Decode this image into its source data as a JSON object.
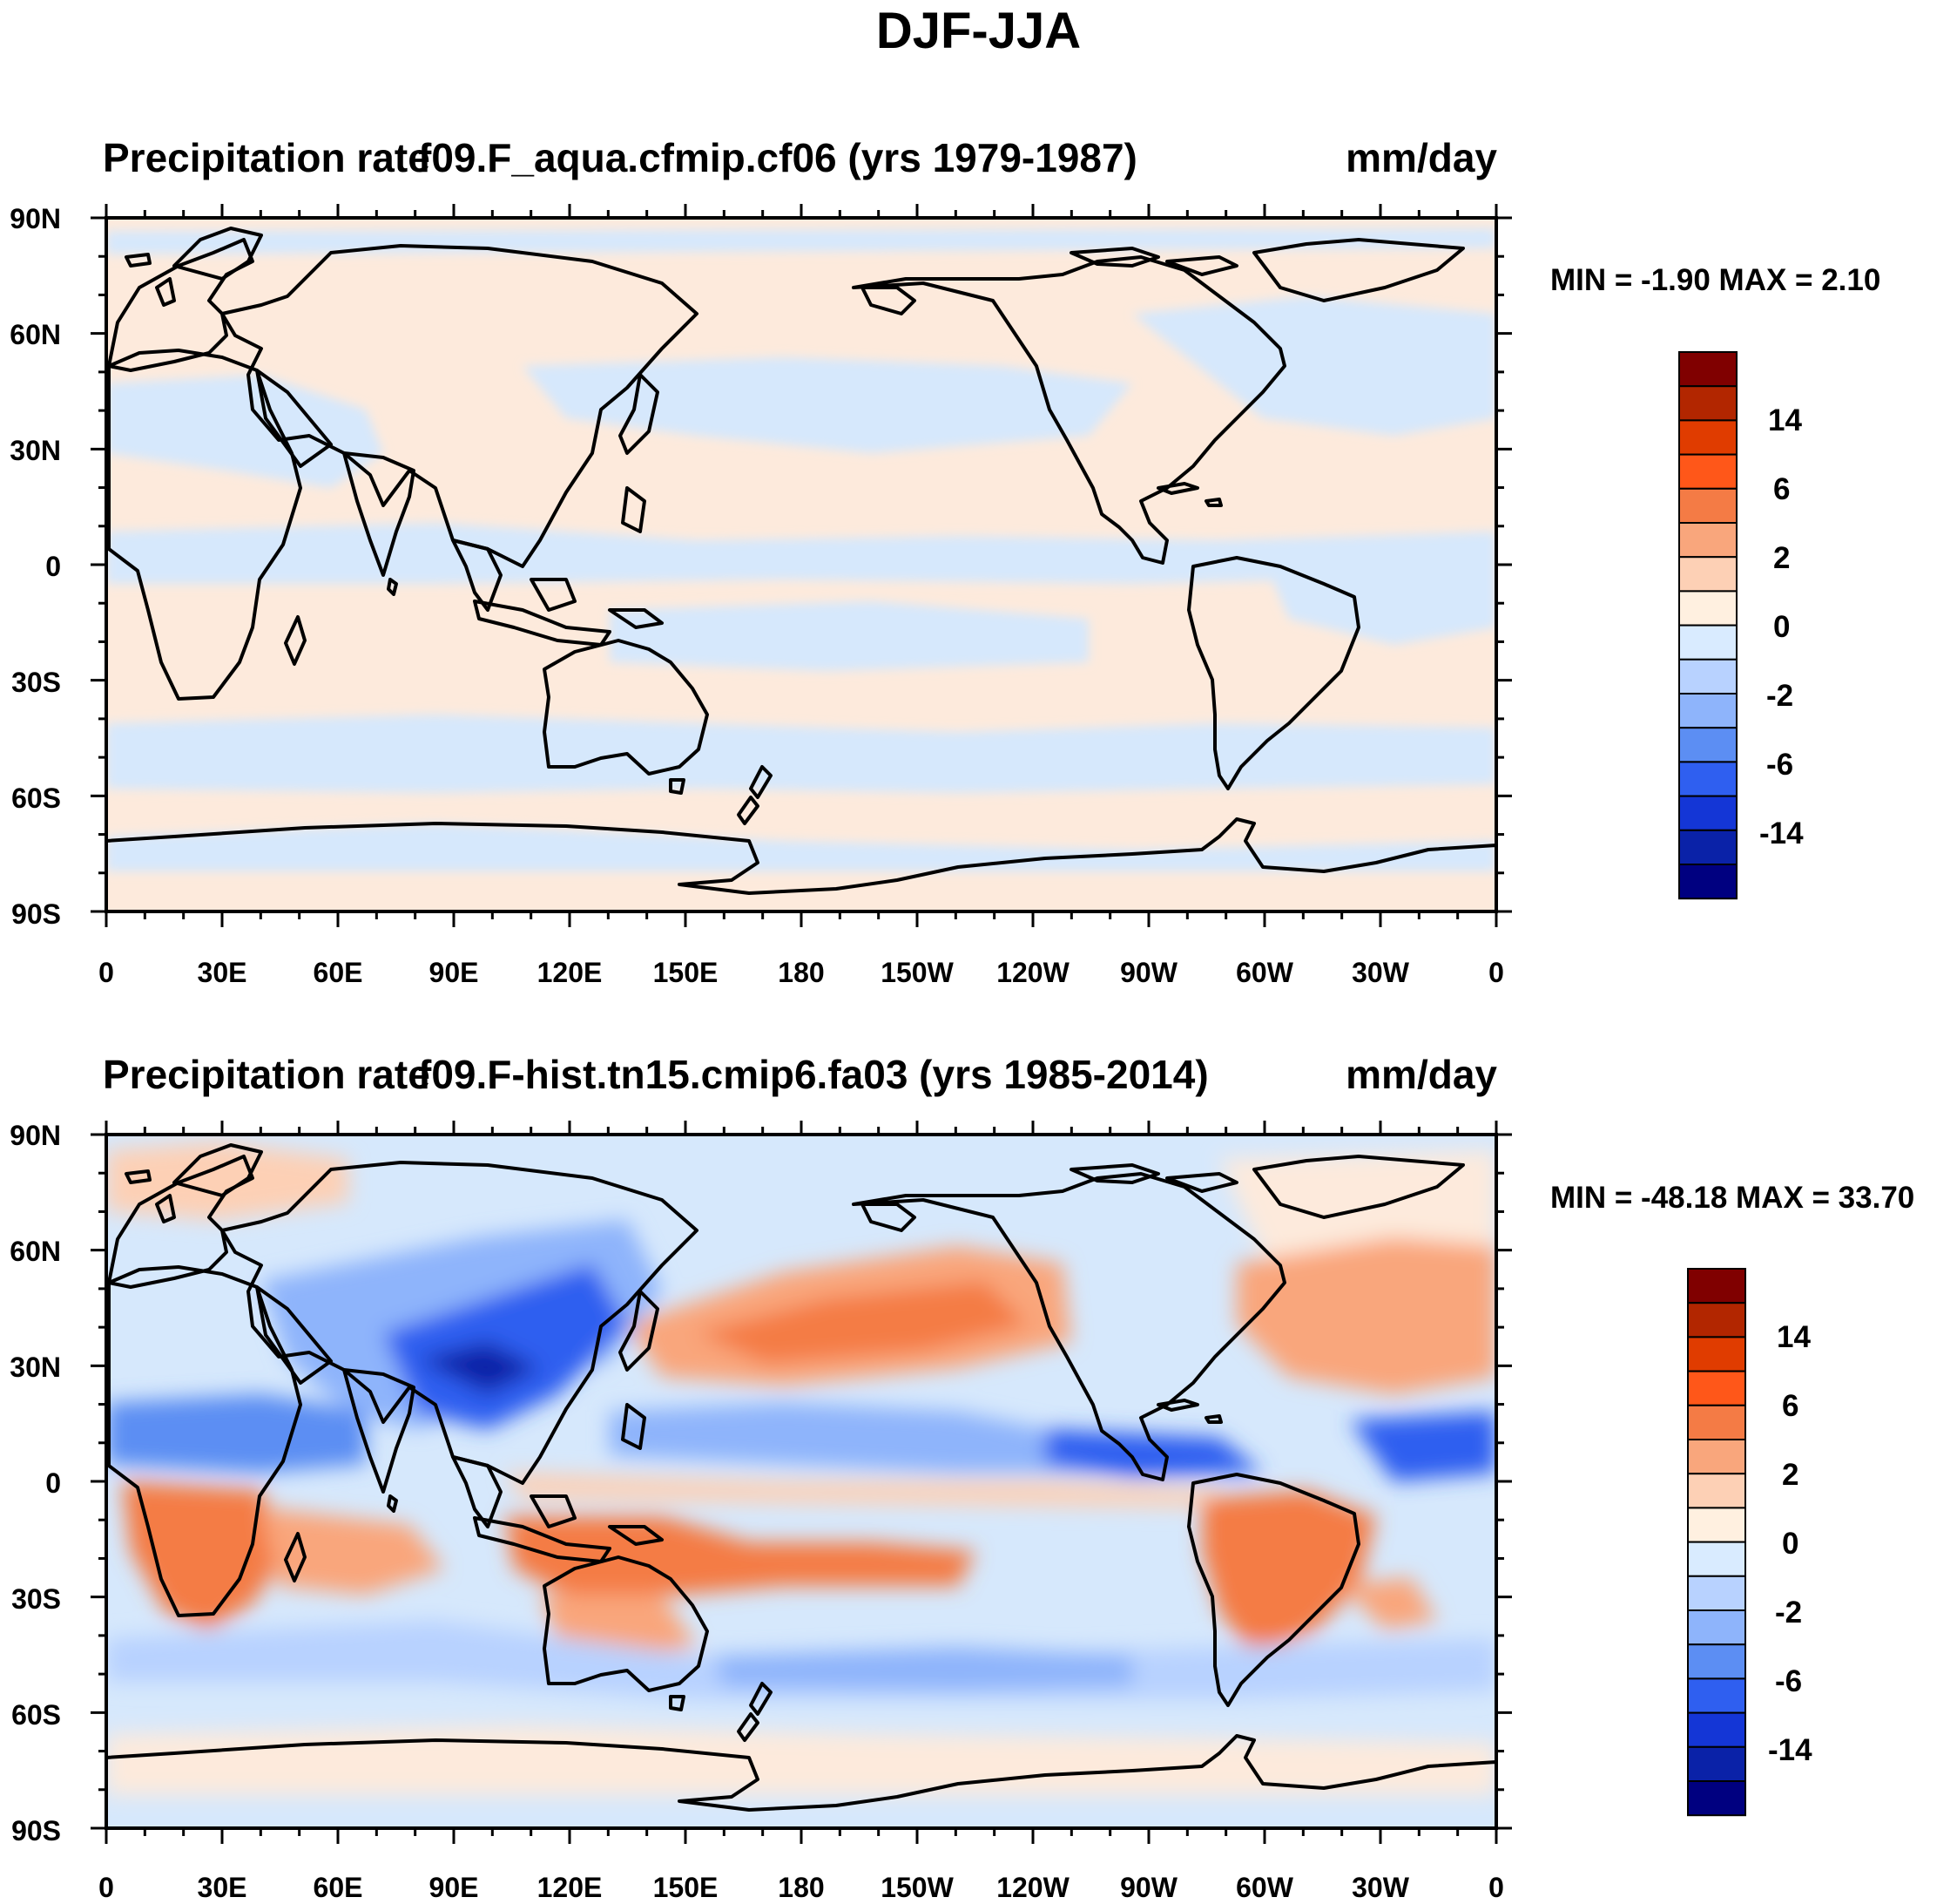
{
  "main_title": "DJF-JJA",
  "panels": [
    {
      "left_title": "Precipitation rate",
      "center_title": "f09.F_aqua.cfmip.cf06 (yrs 1979-1987)",
      "right_title": "mm/day",
      "stats": "MIN =  -1.90 MAX =   2.10",
      "min": -1.9,
      "max": 2.1
    },
    {
      "left_title": "Precipitation rate",
      "center_title": "f09.F-hist.tn15.cmip6.fa03 (yrs 1985-2014)",
      "right_title": "mm/day",
      "stats": "MIN = -48.18 MAX =  33.70",
      "min": -48.18,
      "max": 33.7
    }
  ],
  "lat_ticks": [
    "90N",
    "60N",
    "30N",
    "0",
    "30S",
    "60S",
    "90S"
  ],
  "lon_ticks": [
    "0",
    "30E",
    "60E",
    "90E",
    "120E",
    "150E",
    "180",
    "150W",
    "120W",
    "90W",
    "60W",
    "30W",
    "0"
  ],
  "colorbar": {
    "labels": [
      "14",
      "6",
      "2",
      "0",
      "-2",
      "-6",
      "-14"
    ],
    "colors": [
      "#800000",
      "#b22600",
      "#e03c00",
      "#ff5719",
      "#f47b45",
      "#f9a67c",
      "#fdd0b5",
      "#fff0e0",
      "#d9ebff",
      "#b8d2ff",
      "#8eb4fb",
      "#5c8ef3",
      "#2f5ff0",
      "#1436d6",
      "#0a22a8",
      "#000080"
    ]
  },
  "colors": {
    "ocean_neutral_top": "#fdeadc",
    "ocean_blue_top": "#d6e8fc",
    "coast": "#000000"
  }
}
